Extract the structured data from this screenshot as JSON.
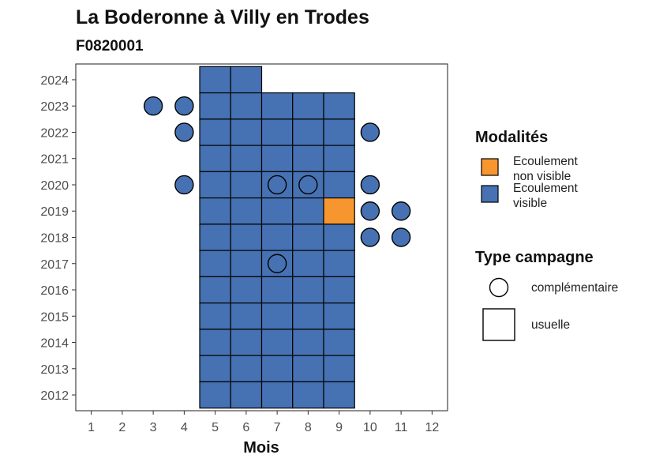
{
  "chart_data": {
    "type": "heatmap",
    "title": "La Boderonne à Villy en Trodes",
    "subtitle": "F0820001",
    "xlabel": "Mois",
    "ylabel": "",
    "x_ticks": [
      "1",
      "2",
      "3",
      "4",
      "5",
      "6",
      "7",
      "8",
      "9",
      "10",
      "11",
      "12"
    ],
    "y_ticks": [
      "2012",
      "2013",
      "2014",
      "2015",
      "2016",
      "2017",
      "2018",
      "2019",
      "2020",
      "2021",
      "2022",
      "2023",
      "2024"
    ],
    "xlim": [
      0.5,
      12.5
    ],
    "ylim": [
      2011.4,
      2024.6
    ],
    "grid": false,
    "legend_position": "right",
    "colors": {
      "non_visible": "#F7962F",
      "visible": "#4672B3",
      "stroke": "#000000"
    },
    "legend": {
      "modalites_title": "Modalités",
      "modalites": [
        {
          "key": "non_visible",
          "line1": "Ecoulement",
          "line2": "non visible"
        },
        {
          "key": "visible",
          "line1": "Ecoulement",
          "line2": "visible"
        }
      ],
      "campagne_title": "Type campagne",
      "campagne": [
        {
          "shape": "circle",
          "label": "complémentaire"
        },
        {
          "shape": "square",
          "label": "usuelle"
        }
      ]
    },
    "usuelle": [
      {
        "year": 2024,
        "months": [
          5,
          6
        ],
        "non_visible": []
      },
      {
        "year": 2023,
        "months": [
          5,
          6,
          7,
          8,
          9
        ],
        "non_visible": []
      },
      {
        "year": 2022,
        "months": [
          5,
          6,
          7,
          8,
          9
        ],
        "non_visible": []
      },
      {
        "year": 2021,
        "months": [
          5,
          6,
          7,
          8,
          9
        ],
        "non_visible": []
      },
      {
        "year": 2020,
        "months": [
          5,
          6,
          7,
          8,
          9
        ],
        "non_visible": []
      },
      {
        "year": 2019,
        "months": [
          5,
          6,
          7,
          8,
          9
        ],
        "non_visible": [
          9
        ]
      },
      {
        "year": 2018,
        "months": [
          5,
          6,
          7,
          8,
          9
        ],
        "non_visible": []
      },
      {
        "year": 2017,
        "months": [
          5,
          6,
          7,
          8,
          9
        ],
        "non_visible": []
      },
      {
        "year": 2016,
        "months": [
          5,
          6,
          7,
          8,
          9
        ],
        "non_visible": []
      },
      {
        "year": 2015,
        "months": [
          5,
          6,
          7,
          8,
          9
        ],
        "non_visible": []
      },
      {
        "year": 2014,
        "months": [
          5,
          6,
          7,
          8,
          9
        ],
        "non_visible": []
      },
      {
        "year": 2013,
        "months": [
          5,
          6,
          7,
          8,
          9
        ],
        "non_visible": []
      },
      {
        "year": 2012,
        "months": [
          5,
          6,
          7,
          8,
          9
        ],
        "non_visible": []
      }
    ],
    "complementaire": [
      {
        "year": 2023,
        "month": 3,
        "modalite": "visible"
      },
      {
        "year": 2023,
        "month": 4,
        "modalite": "visible"
      },
      {
        "year": 2022,
        "month": 4,
        "modalite": "visible"
      },
      {
        "year": 2022,
        "month": 10,
        "modalite": "visible"
      },
      {
        "year": 2020,
        "month": 4,
        "modalite": "visible"
      },
      {
        "year": 2020,
        "month": 7,
        "modalite": "visible"
      },
      {
        "year": 2020,
        "month": 8,
        "modalite": "visible"
      },
      {
        "year": 2020,
        "month": 10,
        "modalite": "visible"
      },
      {
        "year": 2019,
        "month": 10,
        "modalite": "visible"
      },
      {
        "year": 2019,
        "month": 11,
        "modalite": "visible"
      },
      {
        "year": 2018,
        "month": 10,
        "modalite": "visible"
      },
      {
        "year": 2018,
        "month": 11,
        "modalite": "visible"
      },
      {
        "year": 2017,
        "month": 7,
        "modalite": "visible"
      }
    ]
  }
}
